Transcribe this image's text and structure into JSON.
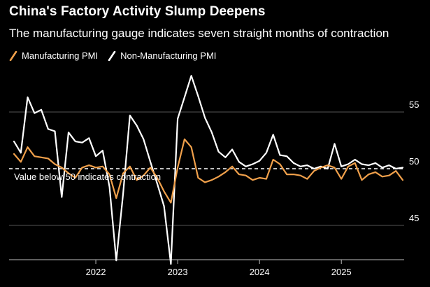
{
  "header": {
    "title": "China's Factory Activity Slump Deepens",
    "subtitle": "The manufacturing gauge indicates seven straight months of contraction"
  },
  "colors": {
    "background": "#000000",
    "manufacturing": "#f0a04b",
    "non_manufacturing": "#ffffff",
    "grid": "#555555"
  },
  "chart_data": {
    "type": "line",
    "title": "China's Factory Activity Slump Deepens",
    "subtitle": "The manufacturing gauge indicates seven straight months of contraction",
    "xlabel": "",
    "ylabel": "",
    "ylim": [
      43,
      59
    ],
    "y_ticks": [
      45,
      50,
      55
    ],
    "x_ticks": [
      2022,
      2023,
      2024,
      2025
    ],
    "x_start": "2021-01",
    "reference_line": {
      "value": 50,
      "label": "Value below 50 indicates contraction"
    },
    "legend": [
      "Manufacturing PMI",
      "Non-Manufacturing PMI"
    ],
    "series": [
      {
        "name": "Manufacturing PMI",
        "values": [
          51.3,
          50.6,
          51.9,
          51.1,
          51.0,
          50.9,
          50.4,
          50.1,
          49.6,
          49.2,
          50.1,
          50.3,
          50.1,
          50.2,
          49.5,
          47.4,
          49.6,
          50.2,
          49.0,
          49.4,
          50.1,
          49.2,
          48.0,
          47.0,
          50.1,
          52.6,
          51.9,
          49.2,
          48.8,
          49.0,
          49.3,
          49.7,
          50.2,
          49.5,
          49.4,
          49.0,
          49.2,
          49.1,
          50.8,
          50.4,
          49.5,
          49.5,
          49.4,
          49.1,
          49.8,
          50.1,
          50.3,
          50.1,
          49.1,
          50.2,
          50.5,
          49.0,
          49.5,
          49.7,
          49.3,
          49.4,
          49.8,
          49.0
        ]
      },
      {
        "name": "Non-Manufacturing PMI",
        "values": [
          52.4,
          51.4,
          56.3,
          54.9,
          55.2,
          53.5,
          53.3,
          47.5,
          53.2,
          52.4,
          52.3,
          52.7,
          51.1,
          51.6,
          48.4,
          41.9,
          47.8,
          54.7,
          53.8,
          52.6,
          50.6,
          48.7,
          46.7,
          41.6,
          54.4,
          56.3,
          58.2,
          56.4,
          54.5,
          53.2,
          51.5,
          51.0,
          51.7,
          50.6,
          50.2,
          50.4,
          50.7,
          51.4,
          53.0,
          51.2,
          51.1,
          50.5,
          50.2,
          50.3,
          50.0,
          50.2,
          50.0,
          52.2,
          50.2,
          50.4,
          50.8,
          50.4,
          50.3,
          50.5,
          50.1,
          50.3,
          50.0,
          50.1
        ]
      }
    ]
  }
}
